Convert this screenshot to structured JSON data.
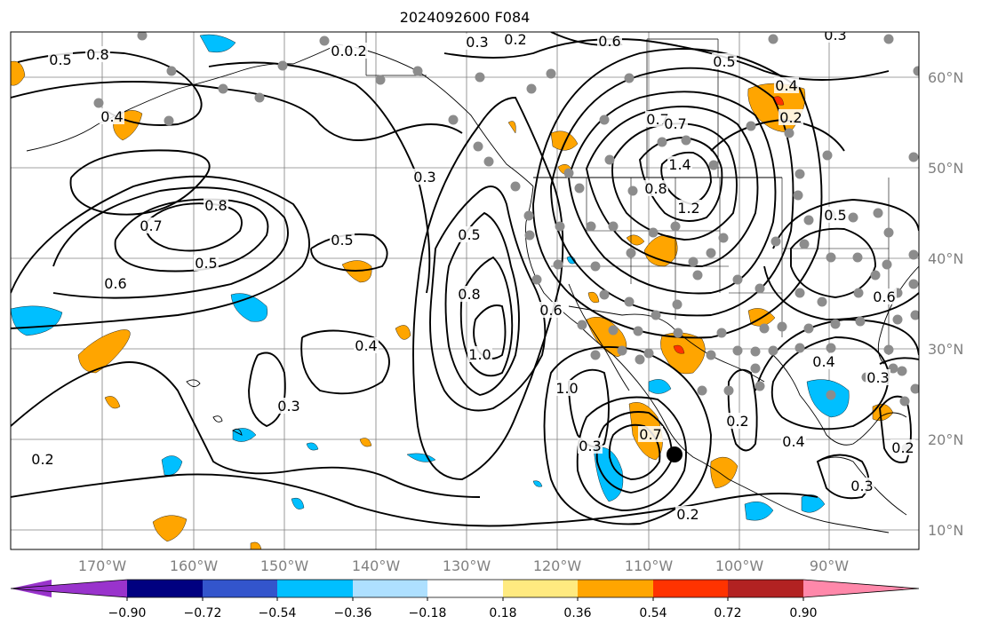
{
  "title": "2024092600 F084",
  "map": {
    "lon_labels": [
      "170°W",
      "160°W",
      "150°W",
      "140°W",
      "130°W",
      "120°W",
      "110°W",
      "100°W",
      "90°W"
    ],
    "lat_labels": [
      "60°N",
      "50°N",
      "40°N",
      "30°N",
      "20°N",
      "10°N"
    ],
    "contour_labels": [
      "0.5",
      "0.8",
      "0.6",
      "0.4",
      "0.7",
      "0.8",
      "0.5",
      "0.6",
      "0.5",
      "0.4",
      "0.3",
      "0.2",
      "0.2",
      "0.3",
      "0.2",
      "0.6",
      "0.5",
      "0.4",
      "0.2",
      "0.7",
      "1.0",
      "1.4",
      "0.8",
      "1.2",
      "0.5",
      "0.8",
      "1.0",
      "0.6",
      "0.3",
      "0.5",
      "0.6",
      "0.4",
      "0.3",
      "0.2",
      "0.2",
      "0.3",
      "0.7",
      "0.3",
      "0.4",
      "0.2",
      "0.3",
      "0.7"
    ],
    "colors": {
      "contour": "#000000",
      "grid": "#808080",
      "station_dot": "#8c8c8c",
      "positive_fill": "#ffa500",
      "strong_positive_fill": "#ff3300",
      "negative_fill": "#00bfff"
    }
  },
  "colorbar": {
    "ticks": [
      "−0.90",
      "−0.72",
      "−0.54",
      "−0.36",
      "−0.18",
      "0.18",
      "0.36",
      "0.54",
      "0.72",
      "0.90"
    ],
    "colors": [
      "#9933cc",
      "#000080",
      "#3355cc",
      "#00bfff",
      "#aee0ff",
      "#ffffff",
      "#ffea80",
      "#ffa500",
      "#ff3300",
      "#b22222",
      "#ff88aa"
    ]
  }
}
